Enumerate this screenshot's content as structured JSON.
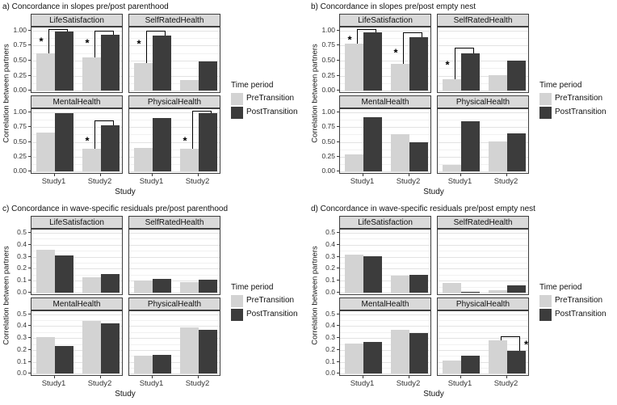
{
  "colors": {
    "pre": "#d3d3d3",
    "post": "#3c3c3c",
    "strip_bg": "#d9d9d9",
    "border": "#3f3f3f",
    "grid_major": "#e2e2e2",
    "grid_minor": "#f1f1f1",
    "axis_text": "#333333",
    "text": "#111111"
  },
  "legend": {
    "title": "Time period",
    "items": [
      {
        "label": "PreTransition",
        "key": "pre"
      },
      {
        "label": "PostTransition",
        "key": "post"
      }
    ]
  },
  "axes": {
    "x_title": "Study",
    "y_title": "Correlation between partners",
    "x_categories": [
      "Study1",
      "Study2"
    ]
  },
  "sig_symbol": "*",
  "chart_data": [
    {
      "id": "a",
      "title": "a) Concordance in slopes pre/post parenthood",
      "type": "bar",
      "y_ticks": [
        0,
        0.25,
        0.5,
        0.75,
        1
      ],
      "y_tick_labels": [
        "0.00",
        "0.25",
        "0.50",
        "0.75",
        "1.00"
      ],
      "y_minor": [
        0.125,
        0.375,
        0.625,
        0.875
      ],
      "ylim": [
        -0.05,
        1.05
      ],
      "facets": [
        {
          "name": "LifeSatisfaction",
          "pre": [
            0.62,
            0.55
          ],
          "post": [
            0.98,
            0.93
          ]
        },
        {
          "name": "SelfRatedHealth",
          "pre": [
            0.46,
            0.18
          ],
          "post": [
            0.91,
            0.49
          ]
        },
        {
          "name": "MentalHealth",
          "pre": [
            0.66,
            0.39
          ],
          "post": [
            0.98,
            0.78
          ]
        },
        {
          "name": "PhysicalHealth",
          "pre": [
            0.4,
            0.38
          ],
          "post": [
            0.9,
            0.98
          ]
        }
      ],
      "significance": [
        {
          "facet": 0,
          "study": 0,
          "bracket_top": 1.02,
          "star_side": "left",
          "star_y": 0.82
        },
        {
          "facet": 0,
          "study": 1,
          "bracket_top": 1.0,
          "star_side": "left",
          "star_y": 0.8
        },
        {
          "facet": 1,
          "study": 0,
          "bracket_top": 1.0,
          "star_side": "left",
          "star_y": 0.78
        },
        {
          "facet": 2,
          "study": 1,
          "bracket_top": 0.86,
          "star_side": "left",
          "star_y": 0.52
        },
        {
          "facet": 3,
          "study": 1,
          "bracket_top": 1.02,
          "star_side": "left",
          "star_y": 0.52
        }
      ]
    },
    {
      "id": "b",
      "title": "b) Concordance in slopes pre/post empty nest",
      "type": "bar",
      "y_ticks": [
        0,
        0.25,
        0.5,
        0.75,
        1
      ],
      "y_tick_labels": [
        "0.00",
        "0.25",
        "0.50",
        "0.75",
        "1.00"
      ],
      "y_minor": [
        0.125,
        0.375,
        0.625,
        0.875
      ],
      "ylim": [
        -0.05,
        1.05
      ],
      "facets": [
        {
          "name": "LifeSatisfaction",
          "pre": [
            0.78,
            0.445
          ],
          "post": [
            0.97,
            0.885
          ]
        },
        {
          "name": "SelfRatedHealth",
          "pre": [
            0.185,
            0.26
          ],
          "post": [
            0.615,
            0.495
          ]
        },
        {
          "name": "MentalHealth",
          "pre": [
            0.29,
            0.625
          ],
          "post": [
            0.91,
            0.495
          ]
        },
        {
          "name": "PhysicalHealth",
          "pre": [
            0.11,
            0.51
          ],
          "post": [
            0.85,
            0.645
          ]
        }
      ],
      "significance": [
        {
          "facet": 0,
          "study": 0,
          "bracket_top": 1.02,
          "star_side": "left",
          "star_y": 0.85
        },
        {
          "facet": 0,
          "study": 1,
          "bracket_top": 0.97,
          "star_side": "left",
          "star_y": 0.63
        },
        {
          "facet": 1,
          "study": 0,
          "bracket_top": 0.71,
          "star_side": "left",
          "star_y": 0.43
        }
      ]
    },
    {
      "id": "c",
      "title": "c) Concordance in wave-specific residuals pre/post parenthood",
      "type": "bar",
      "y_ticks": [
        0,
        0.1,
        0.2,
        0.3,
        0.4,
        0.5
      ],
      "y_tick_labels": [
        "0.0",
        "0.1",
        "0.2",
        "0.3",
        "0.4",
        "0.5"
      ],
      "y_minor": [
        0.05,
        0.15,
        0.25,
        0.35,
        0.45
      ],
      "ylim": [
        -0.025,
        0.525
      ],
      "facets": [
        {
          "name": "LifeSatisfaction",
          "pre": [
            0.355,
            0.13
          ],
          "post": [
            0.31,
            0.155
          ]
        },
        {
          "name": "SelfRatedHealth",
          "pre": [
            0.1,
            0.09
          ],
          "post": [
            0.115,
            0.11
          ]
        },
        {
          "name": "MentalHealth",
          "pre": [
            0.31,
            0.445
          ],
          "post": [
            0.23,
            0.42
          ]
        },
        {
          "name": "PhysicalHealth",
          "pre": [
            0.15,
            0.39
          ],
          "post": [
            0.155,
            0.37
          ]
        }
      ],
      "significance": []
    },
    {
      "id": "d",
      "title": "d) Concordance in wave-specific residuals pre/post empty nest",
      "type": "bar",
      "y_ticks": [
        0,
        0.1,
        0.2,
        0.3,
        0.4,
        0.5
      ],
      "y_tick_labels": [
        "0.0",
        "0.1",
        "0.2",
        "0.3",
        "0.4",
        "0.5"
      ],
      "y_minor": [
        0.05,
        0.15,
        0.25,
        0.35,
        0.45
      ],
      "ylim": [
        -0.025,
        0.525
      ],
      "facets": [
        {
          "name": "LifeSatisfaction",
          "pre": [
            0.315,
            0.145
          ],
          "post": [
            0.305,
            0.15
          ]
        },
        {
          "name": "SelfRatedHealth",
          "pre": [
            0.085,
            0.025
          ],
          "post": [
            0.01,
            0.065
          ]
        },
        {
          "name": "MentalHealth",
          "pre": [
            0.255,
            0.37
          ],
          "post": [
            0.27,
            0.34
          ]
        },
        {
          "name": "PhysicalHealth",
          "pre": [
            0.11,
            0.28
          ],
          "post": [
            0.15,
            0.195
          ]
        }
      ],
      "significance": [
        {
          "facet": 3,
          "study": 1,
          "bracket_top": 0.315,
          "star_side": "right",
          "star_y": 0.245
        }
      ]
    }
  ]
}
